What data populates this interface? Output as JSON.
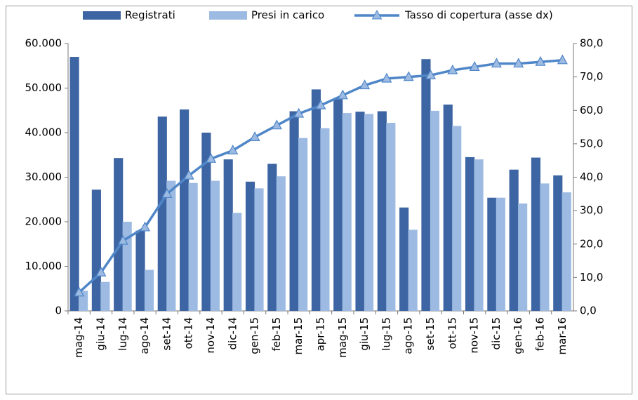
{
  "chart_data": {
    "type": "bar",
    "categories": [
      "mag-14",
      "giu-14",
      "lug-14",
      "ago-14",
      "set-14",
      "ott-14",
      "nov-14",
      "dic-14",
      "gen-15",
      "feb-15",
      "mar-15",
      "apr-15",
      "mag-15",
      "giu-15",
      "lug-15",
      "ago-15",
      "set-15",
      "ott-15",
      "nov-15",
      "dic-15",
      "gen-16",
      "feb-16",
      "mar-16"
    ],
    "series": [
      {
        "name": "Registrati",
        "type": "bar",
        "color": "#3d65a3",
        "values": [
          57000,
          27200,
          34300,
          18000,
          43600,
          45200,
          40000,
          34000,
          29000,
          33000,
          44800,
          49700,
          47500,
          44700,
          44800,
          23200,
          56500,
          46300,
          34500,
          25400,
          31700,
          34400,
          30400
        ]
      },
      {
        "name": "Presi in carico",
        "type": "bar",
        "color": "#9dbbe2",
        "values": [
          4500,
          6500,
          20000,
          9200,
          29200,
          28700,
          29200,
          22000,
          27500,
          30200,
          38800,
          41000,
          44400,
          44200,
          42200,
          18200,
          44900,
          41500,
          34000,
          25400,
          24100,
          28600,
          26600
        ]
      },
      {
        "name": "Tasso di copertura (asse dx)",
        "type": "line",
        "axis": "y2",
        "color": "#4f86c8",
        "values": [
          5.5,
          11.5,
          21,
          25,
          35,
          40.5,
          45.5,
          48,
          52,
          55.5,
          59,
          61.5,
          64.5,
          67.5,
          69.5,
          70,
          70.5,
          72,
          73,
          74,
          74,
          74.5,
          75
        ]
      }
    ],
    "ylim": [
      0,
      60000
    ],
    "yticks": [
      0,
      {
        "value": 10000,
        "label": "10.000"
      },
      {
        "value": 20000,
        "label": "20.000"
      },
      {
        "value": 30000,
        "label": "30.000"
      },
      {
        "value": 40000,
        "label": "40.000"
      },
      {
        "value": 50000,
        "label": "50.000"
      },
      {
        "value": 60000,
        "label": "60.000"
      }
    ],
    "y2lim": [
      0,
      80
    ],
    "y2ticks": [
      {
        "value": 0,
        "label": "0,0"
      },
      {
        "value": 10,
        "label": "10,0"
      },
      {
        "value": 20,
        "label": "20,0"
      },
      {
        "value": 30,
        "label": "30,0"
      },
      {
        "value": 40,
        "label": "40,0"
      },
      {
        "value": 50,
        "label": "50,0"
      },
      {
        "value": 60,
        "label": "60,0"
      },
      {
        "value": 70,
        "label": "70,0"
      },
      {
        "value": 80,
        "label": "80,0"
      }
    ],
    "grid": false,
    "legend": "top"
  }
}
